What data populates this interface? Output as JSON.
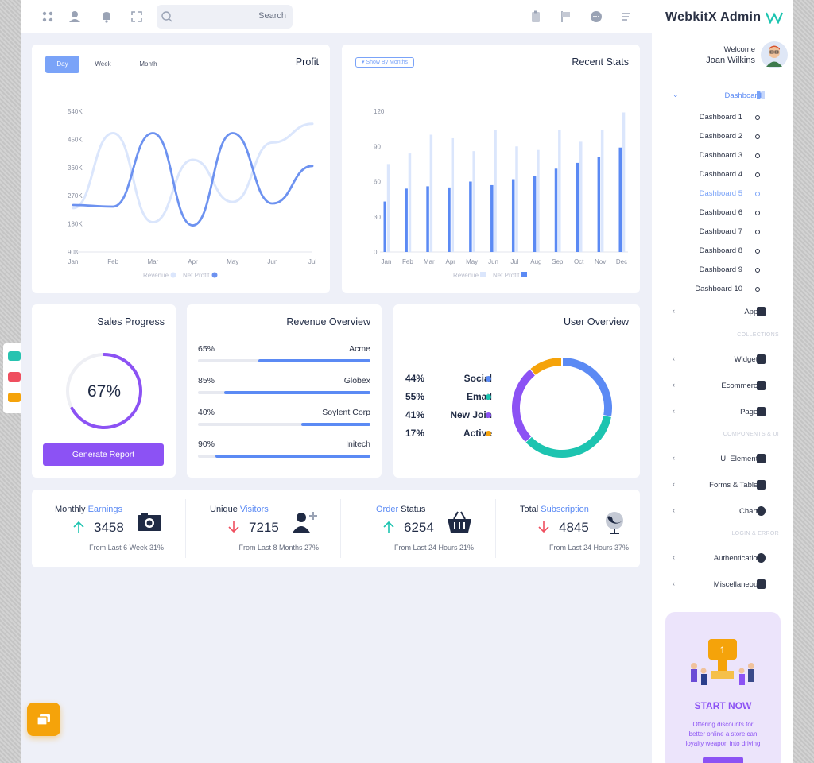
{
  "topbar": {
    "search_placeholder": "Search"
  },
  "profit": {
    "title": "Profit",
    "tabs": [
      "Day",
      "Week",
      "Month"
    ],
    "active_tab": "Day"
  },
  "recent_stats": {
    "title": "Recent Stats",
    "filter_label": "▾ Show By Months"
  },
  "sales_progress": {
    "title": "Sales Progress",
    "percent_label": "67%",
    "percent": 67,
    "button_label": "Generate Report"
  },
  "revenue_overview": {
    "title": "Revenue Overview",
    "rows": [
      {
        "pct": "65%",
        "name": "Acme",
        "value": 65
      },
      {
        "pct": "85%",
        "name": "Globex",
        "value": 85
      },
      {
        "pct": "40%",
        "name": "Soylent Corp",
        "value": 40
      },
      {
        "pct": "90%",
        "name": "Initech",
        "value": 90
      }
    ]
  },
  "user_overview": {
    "title": "User Overview",
    "rows": [
      {
        "pct": "44%",
        "label": "Social",
        "color": "#5b8af4"
      },
      {
        "pct": "55%",
        "label": "Email",
        "color": "#1dc4b0"
      },
      {
        "pct": "41%",
        "label": "New Join",
        "color": "#8c52f4"
      },
      {
        "pct": "17%",
        "label": "Active",
        "color": "#f5a30a"
      }
    ]
  },
  "stats": [
    {
      "title_a": "Monthly ",
      "title_b": "Earnings",
      "title_c": "",
      "value": "3458",
      "trend": "up",
      "sub": "From Last 6 Week 31%"
    },
    {
      "title_a": "Unique ",
      "title_b": "Visitors",
      "title_c": "",
      "value": "7215",
      "trend": "down",
      "sub": "From Last 8 Months 27%"
    },
    {
      "title_a": "",
      "title_b": "Order",
      "title_c": " Status",
      "value": "6254",
      "trend": "up",
      "sub": "From Last 24 Hours 21%"
    },
    {
      "title_a": "Total ",
      "title_b": "Subscription",
      "title_c": "",
      "value": "4845",
      "trend": "down",
      "sub": "From Last 24 Hours 37%"
    }
  ],
  "sidebar": {
    "brand": "WebkitX Admin",
    "welcome": "Welcome",
    "user_name": "Joan Wilkins",
    "dashboard_label": "Dashboard",
    "dashboards": [
      "Dashboard 1",
      "Dashboard 2",
      "Dashboard 3",
      "Dashboard 4",
      "Dashboard 5",
      "Dashboard 6",
      "Dashboard 7",
      "Dashboard 8",
      "Dashboard 9",
      "Dashboard 10"
    ],
    "active_dashboard": "Dashboard 5",
    "apps": "Apps",
    "collections_header": "COLLECTIONS",
    "widgets": "Widgets",
    "ecommerce": "Ecommerce",
    "pages": "Pages",
    "components_header": "COMPONENTS & UI",
    "ui_elements": "UI Elements",
    "forms_tables": "Forms & Tables",
    "charts": "Charts",
    "login_header": "LOGIN & ERROR",
    "authentication": "Authentication",
    "miscellaneous": "Miscellaneous",
    "promo_title": "START NOW",
    "promo_text_1": "Offering discounts for",
    "promo_text_2": "better online a store can",
    "promo_text_3": "loyalty weapon into driving"
  },
  "chart_data": [
    {
      "type": "line",
      "title": "Profit",
      "x": [
        "Jan",
        "Feb",
        "Mar",
        "Apr",
        "May",
        "Jun",
        "Jul"
      ],
      "yticks": [
        "540K",
        "450K",
        "360K",
        "270K",
        "180K",
        "90K"
      ],
      "ylim": [
        90,
        540
      ],
      "series": [
        {
          "name": "Revenue",
          "values": [
            230,
            470,
            185,
            385,
            250,
            440,
            500
          ],
          "color": "#dbe6fc"
        },
        {
          "name": "Net Profit",
          "values": [
            240,
            235,
            470,
            175,
            470,
            245,
            365
          ],
          "color": "#6d92f0"
        }
      ],
      "legend": "bottom"
    },
    {
      "type": "bar",
      "title": "Recent Stats",
      "categories": [
        "Jan",
        "Feb",
        "Mar",
        "Apr",
        "May",
        "Jun",
        "Jul",
        "Aug",
        "Sep",
        "Oct",
        "Nov",
        "Dec"
      ],
      "yticks": [
        "120",
        "90",
        "60",
        "30",
        "0"
      ],
      "ylim": [
        0,
        120
      ],
      "series": [
        {
          "name": "Revenue",
          "values": [
            75,
            84,
            100,
            97,
            86,
            104,
            90,
            87,
            104,
            94,
            104,
            119
          ],
          "color": "#dbe6fc"
        },
        {
          "name": "Net Profit",
          "values": [
            43,
            54,
            56,
            55,
            60,
            57,
            62,
            65,
            71,
            76,
            81,
            89
          ],
          "color": "#5b8af4"
        }
      ],
      "legend": "bottom"
    },
    {
      "type": "pie",
      "title": "User Overview",
      "categories": [
        "Social",
        "Email",
        "New Join",
        "Active"
      ],
      "values": [
        44,
        55,
        41,
        17
      ],
      "colors": [
        "#5b8af4",
        "#1dc4b0",
        "#8c52f4",
        "#f5a30a"
      ]
    }
  ]
}
